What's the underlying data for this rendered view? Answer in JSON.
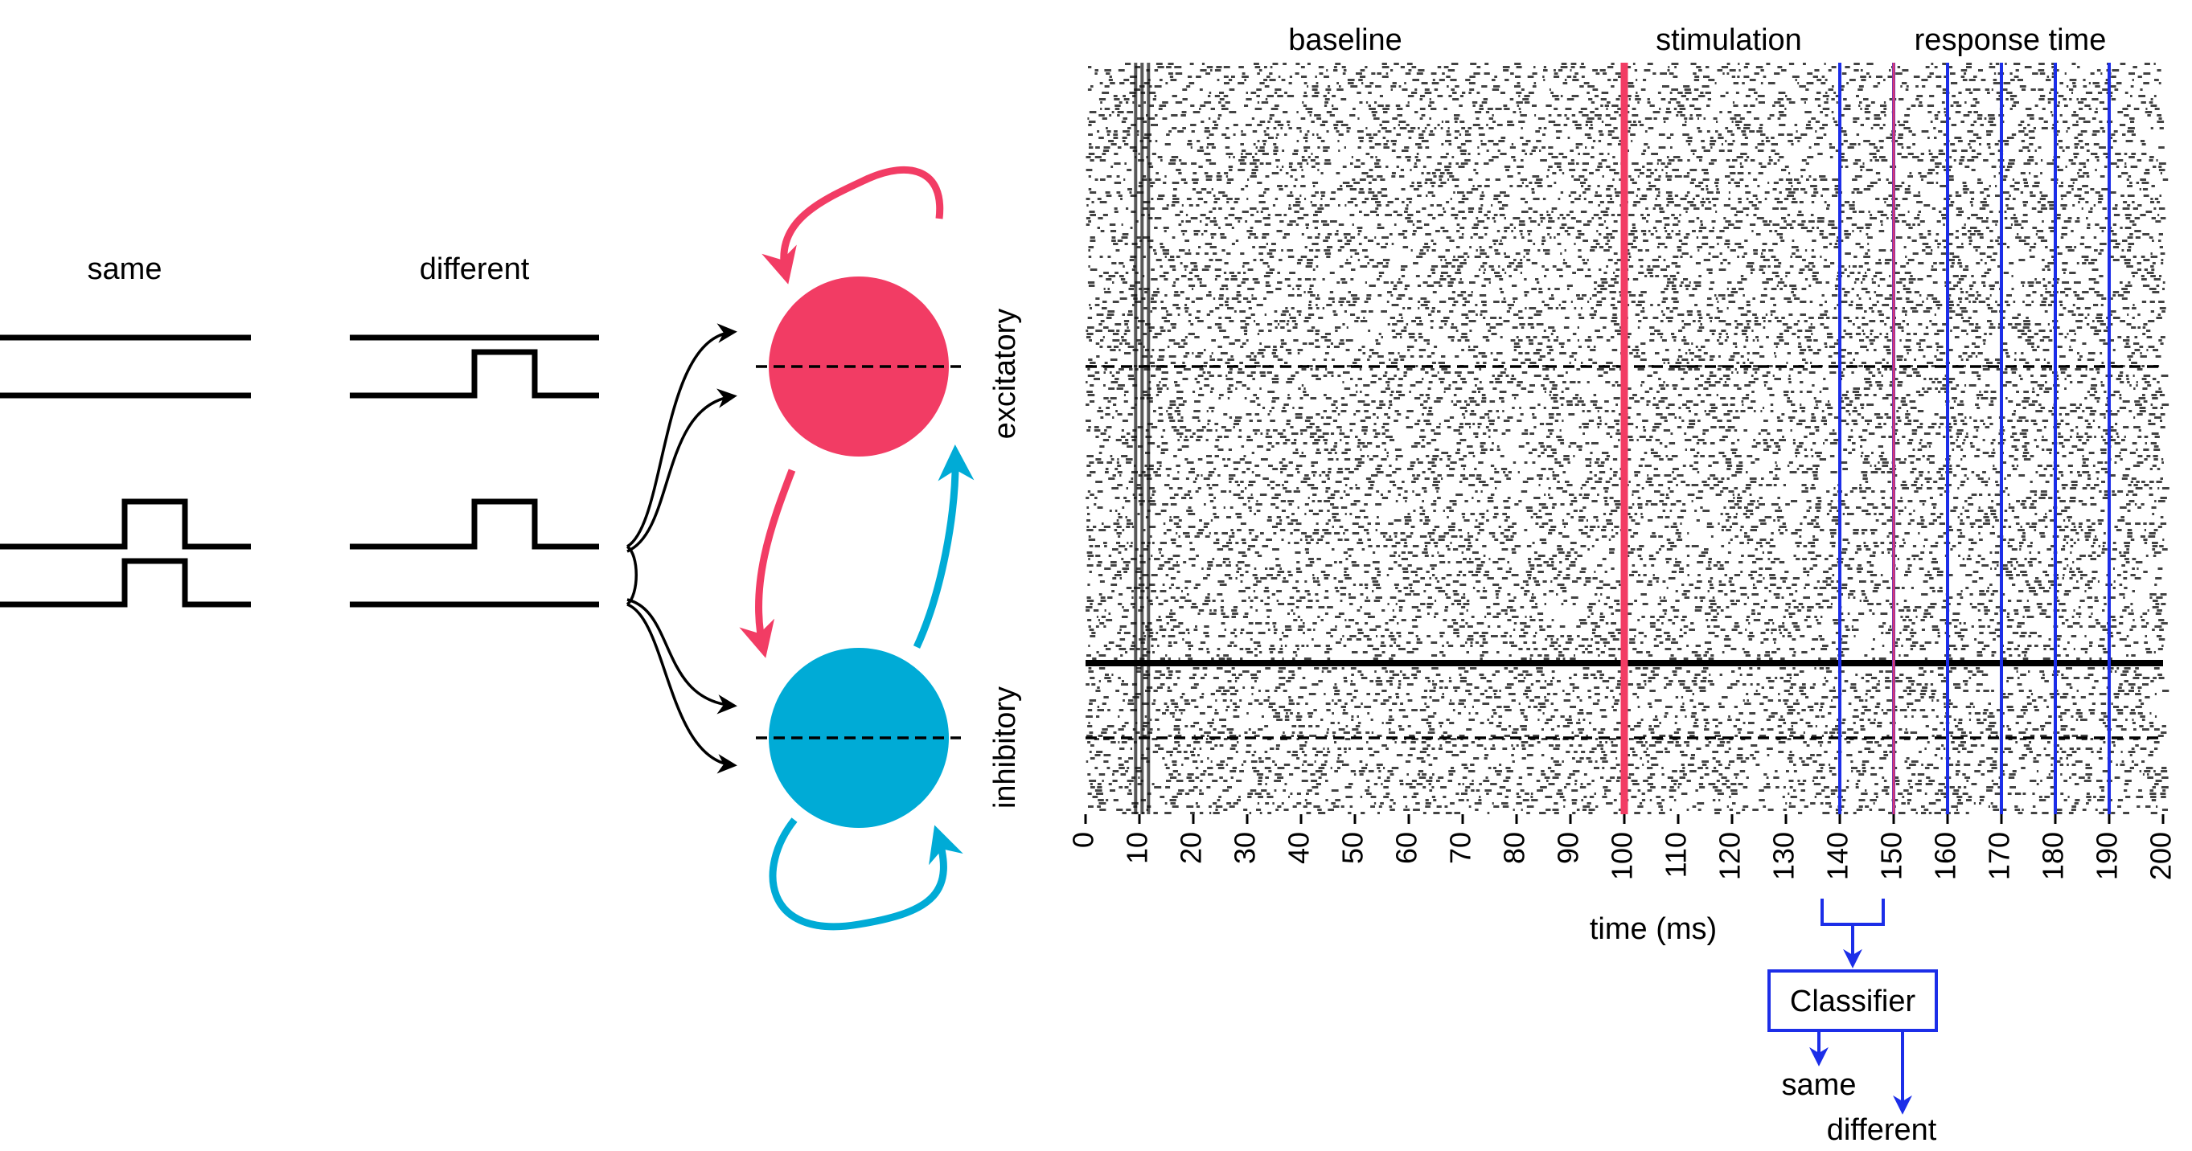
{
  "inputs": {
    "same_label": "same",
    "different_label": "different"
  },
  "network": {
    "excitatory_label": "excitatory",
    "inhibitory_label": "inhibitory"
  },
  "raster": {
    "phases": {
      "baseline": "baseline",
      "stimulation": "stimulation",
      "response_time": "response time"
    },
    "xlabel": "time (ms)",
    "ticks": [
      "0",
      "10",
      "20",
      "30",
      "40",
      "50",
      "60",
      "70",
      "80",
      "90",
      "100",
      "110",
      "120",
      "130",
      "140",
      "150",
      "160",
      "170",
      "180",
      "190",
      "200"
    ],
    "stimulus_onset_ms": 100,
    "readout_times_ms": [
      140,
      150,
      160,
      170,
      180,
      190
    ],
    "xlim": [
      0,
      200
    ]
  },
  "classifier": {
    "label": "Classifier",
    "outputs": [
      "same",
      "different"
    ]
  },
  "colors": {
    "excitatory": "#f23c64",
    "inhibitory": "#00abd6",
    "readout": "#1c2ee8",
    "onset": "#f23c64"
  }
}
